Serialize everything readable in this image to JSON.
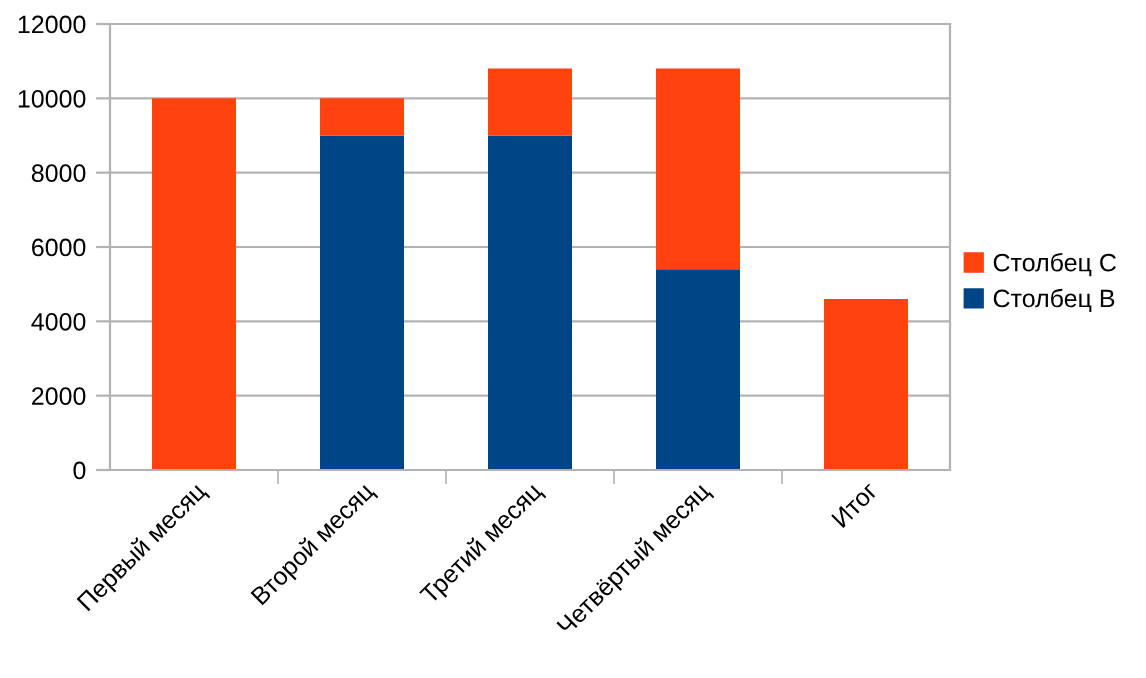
{
  "chart_data": {
    "type": "bar",
    "stacked": true,
    "categories": [
      "Первый месяц",
      "Второй месяц",
      "Третий месяц",
      "Четвёртый месяц",
      "Итог"
    ],
    "series": [
      {
        "name": "Столбец B",
        "color": "#004586",
        "values": [
          0,
          9000,
          9000,
          5400,
          0
        ]
      },
      {
        "name": "Столбец C",
        "color": "#ff420e",
        "values": [
          10000,
          1000,
          1800,
          5400,
          4600
        ]
      }
    ],
    "ylim": [
      0,
      12000
    ],
    "yticks": [
      0,
      2000,
      4000,
      6000,
      8000,
      10000,
      12000
    ],
    "grid": "y",
    "legend": "right"
  }
}
